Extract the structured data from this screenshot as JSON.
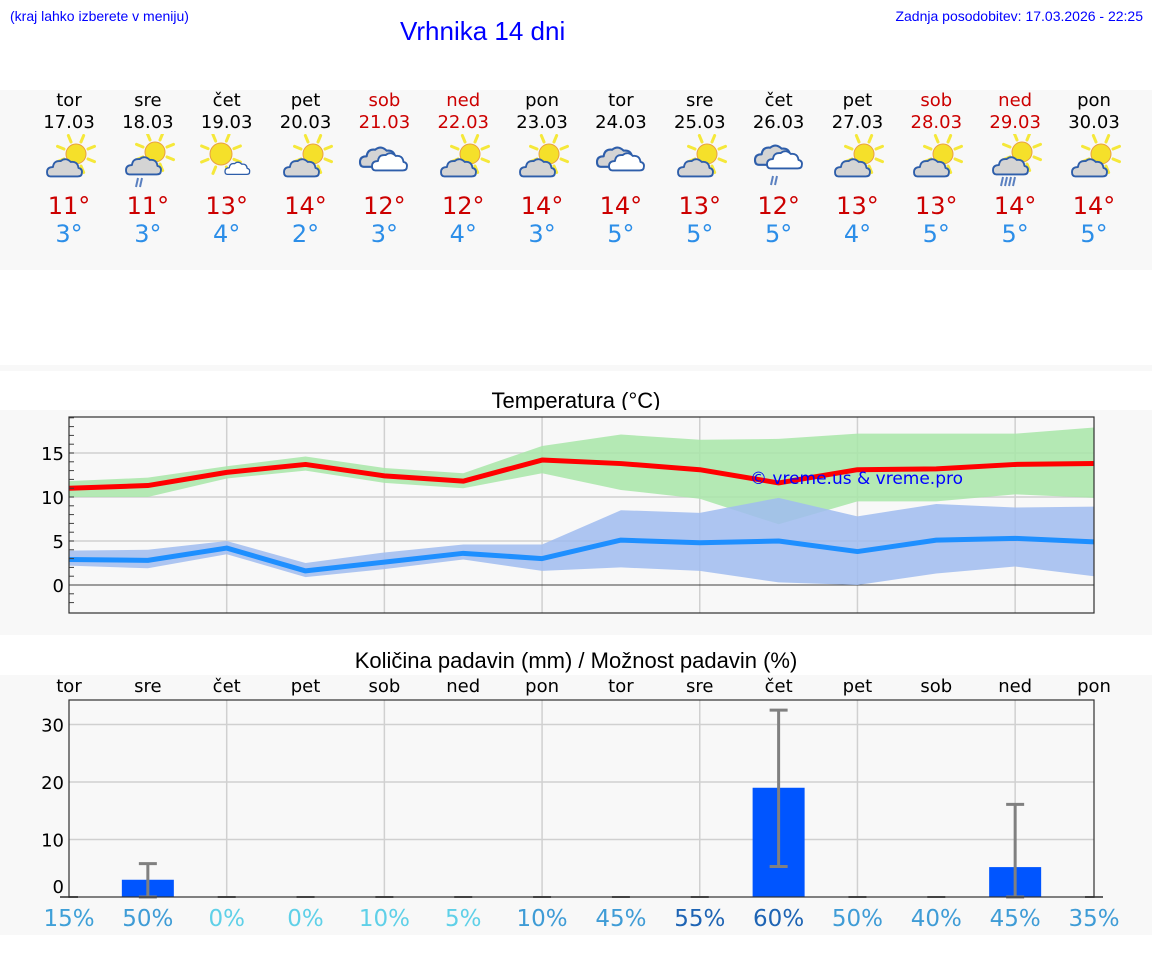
{
  "header": {
    "menu_hint": "(kraj lahko izberete v meniju)",
    "title": "Vrhnika 14 dni",
    "last_update": "Zadnja posodobitev: 17.03.2026 - 22:25"
  },
  "colors": {
    "link_blue": "#0000ff",
    "weekend_red": "#cc0000",
    "tmax_red": "#cc0000",
    "tmin_blue": "#2c8ee8",
    "max_line": "#ff0000",
    "max_band": "#a8e6a8",
    "min_line": "#1e8fff",
    "min_band": "#a9c4f2",
    "precip_bar": "#0055ff",
    "error_bar": "#808080"
  },
  "days": [
    {
      "name": "tor",
      "date": "17.03",
      "weekend": false,
      "icon": "partly-cloudy-icon",
      "tmax": "11°",
      "tmin": "3°"
    },
    {
      "name": "sre",
      "date": "18.03",
      "weekend": false,
      "icon": "partly-cloudy-light-rain-icon",
      "tmax": "11°",
      "tmin": "3°"
    },
    {
      "name": "čet",
      "date": "19.03",
      "weekend": false,
      "icon": "mostly-sunny-icon",
      "tmax": "13°",
      "tmin": "4°"
    },
    {
      "name": "pet",
      "date": "20.03",
      "weekend": false,
      "icon": "partly-cloudy-icon",
      "tmax": "14°",
      "tmin": "2°"
    },
    {
      "name": "sob",
      "date": "21.03",
      "weekend": true,
      "icon": "cloudy-icon",
      "tmax": "12°",
      "tmin": "3°"
    },
    {
      "name": "ned",
      "date": "22.03",
      "weekend": true,
      "icon": "partly-cloudy-icon",
      "tmax": "12°",
      "tmin": "4°"
    },
    {
      "name": "pon",
      "date": "23.03",
      "weekend": false,
      "icon": "partly-cloudy-icon",
      "tmax": "14°",
      "tmin": "3°"
    },
    {
      "name": "tor",
      "date": "24.03",
      "weekend": false,
      "icon": "cloudy-icon",
      "tmax": "14°",
      "tmin": "5°"
    },
    {
      "name": "sre",
      "date": "25.03",
      "weekend": false,
      "icon": "partly-cloudy-icon",
      "tmax": "13°",
      "tmin": "5°"
    },
    {
      "name": "čet",
      "date": "26.03",
      "weekend": false,
      "icon": "cloudy-light-rain-icon",
      "tmax": "12°",
      "tmin": "5°"
    },
    {
      "name": "pet",
      "date": "27.03",
      "weekend": false,
      "icon": "partly-cloudy-icon",
      "tmax": "13°",
      "tmin": "4°"
    },
    {
      "name": "sob",
      "date": "28.03",
      "weekend": true,
      "icon": "partly-cloudy-icon",
      "tmax": "13°",
      "tmin": "5°"
    },
    {
      "name": "ned",
      "date": "29.03",
      "weekend": true,
      "icon": "partly-cloudy-rain-icon",
      "tmax": "14°",
      "tmin": "5°"
    },
    {
      "name": "pon",
      "date": "30.03",
      "weekend": false,
      "icon": "partly-cloudy-icon",
      "tmax": "14°",
      "tmin": "5°"
    }
  ],
  "chart_data": [
    {
      "type": "line",
      "title": "Temperatura (°C)",
      "xlabel": "",
      "ylabel": "",
      "ylim": [
        -3,
        19
      ],
      "yticks": [
        0,
        5,
        10,
        15
      ],
      "grid": true,
      "x": [
        "17.03",
        "18.03",
        "19.03",
        "20.03",
        "21.03",
        "22.03",
        "23.03",
        "24.03",
        "25.03",
        "26.03",
        "27.03",
        "28.03",
        "29.03",
        "30.03"
      ],
      "series": [
        {
          "name": "max",
          "color": "#ff0000",
          "values": [
            11,
            11.3,
            12.8,
            13.7,
            12.4,
            11.8,
            14.2,
            13.8,
            13.1,
            11.6,
            13.1,
            13.2,
            13.7,
            13.8
          ]
        },
        {
          "name": "max_band_high",
          "values": [
            11.8,
            12.2,
            13.5,
            14.6,
            13.3,
            12.7,
            15.8,
            17.1,
            16.5,
            16.6,
            17.2,
            17.2,
            17.2,
            17.9
          ]
        },
        {
          "name": "max_band_low",
          "values": [
            10,
            10,
            12.1,
            13,
            11.6,
            11,
            12.7,
            10.8,
            9.8,
            6.9,
            9.5,
            9.5,
            10.3,
            9.9
          ]
        },
        {
          "name": "min",
          "color": "#1e8fff",
          "values": [
            2.9,
            2.8,
            4.2,
            1.6,
            2.6,
            3.6,
            3,
            5.1,
            4.8,
            5,
            3.8,
            5.1,
            5.3,
            4.9
          ]
        },
        {
          "name": "min_band_high",
          "values": [
            3.9,
            4,
            5,
            2.5,
            3.7,
            4.6,
            4.6,
            8.5,
            8.2,
            9.9,
            7.8,
            9.2,
            8.8,
            8.9
          ]
        },
        {
          "name": "min_band_low",
          "values": [
            2.2,
            1.9,
            3.5,
            0.9,
            1.8,
            2.9,
            1.6,
            2,
            1.6,
            0.3,
            0,
            1.3,
            2.1,
            1
          ]
        }
      ],
      "annotations": [
        "© vreme.us & vreme.pro"
      ]
    },
    {
      "type": "bar",
      "title": "Količina padavin (mm) / Možnost padavin (%)",
      "xlabel": "",
      "ylabel": "",
      "ylim": [
        0,
        34
      ],
      "yticks": [
        0,
        10,
        20,
        30
      ],
      "grid": true,
      "categories": [
        "tor",
        "sre",
        "čet",
        "pet",
        "sob",
        "ned",
        "pon",
        "tor",
        "sre",
        "čet",
        "pet",
        "sob",
        "ned",
        "pon"
      ],
      "values": [
        0,
        3,
        0,
        0,
        0,
        0,
        0,
        0,
        0,
        19,
        0,
        0,
        5.2,
        0
      ],
      "error_low": [
        0,
        0,
        0,
        0,
        0,
        0,
        0,
        0,
        0,
        5.3,
        0,
        0,
        0,
        0
      ],
      "error_high": [
        0,
        5.8,
        0,
        0,
        0,
        0,
        0,
        0,
        0,
        32.5,
        0,
        0,
        16.1,
        0
      ],
      "probability": [
        "15%",
        "50%",
        "0%",
        "0%",
        "10%",
        "5%",
        "10%",
        "45%",
        "55%",
        "60%",
        "50%",
        "40%",
        "45%",
        "35%"
      ],
      "probability_colors": [
        "#3fa0d8",
        "#3f9cd6",
        "#5fd0e8",
        "#5fd0e8",
        "#5fd0e8",
        "#5fd0e8",
        "#3f9cd6",
        "#3f9cd6",
        "#1e64b4",
        "#1e64b4",
        "#3f9cd6",
        "#3f9cd6",
        "#3f9cd6",
        "#3f9cd6"
      ]
    }
  ]
}
